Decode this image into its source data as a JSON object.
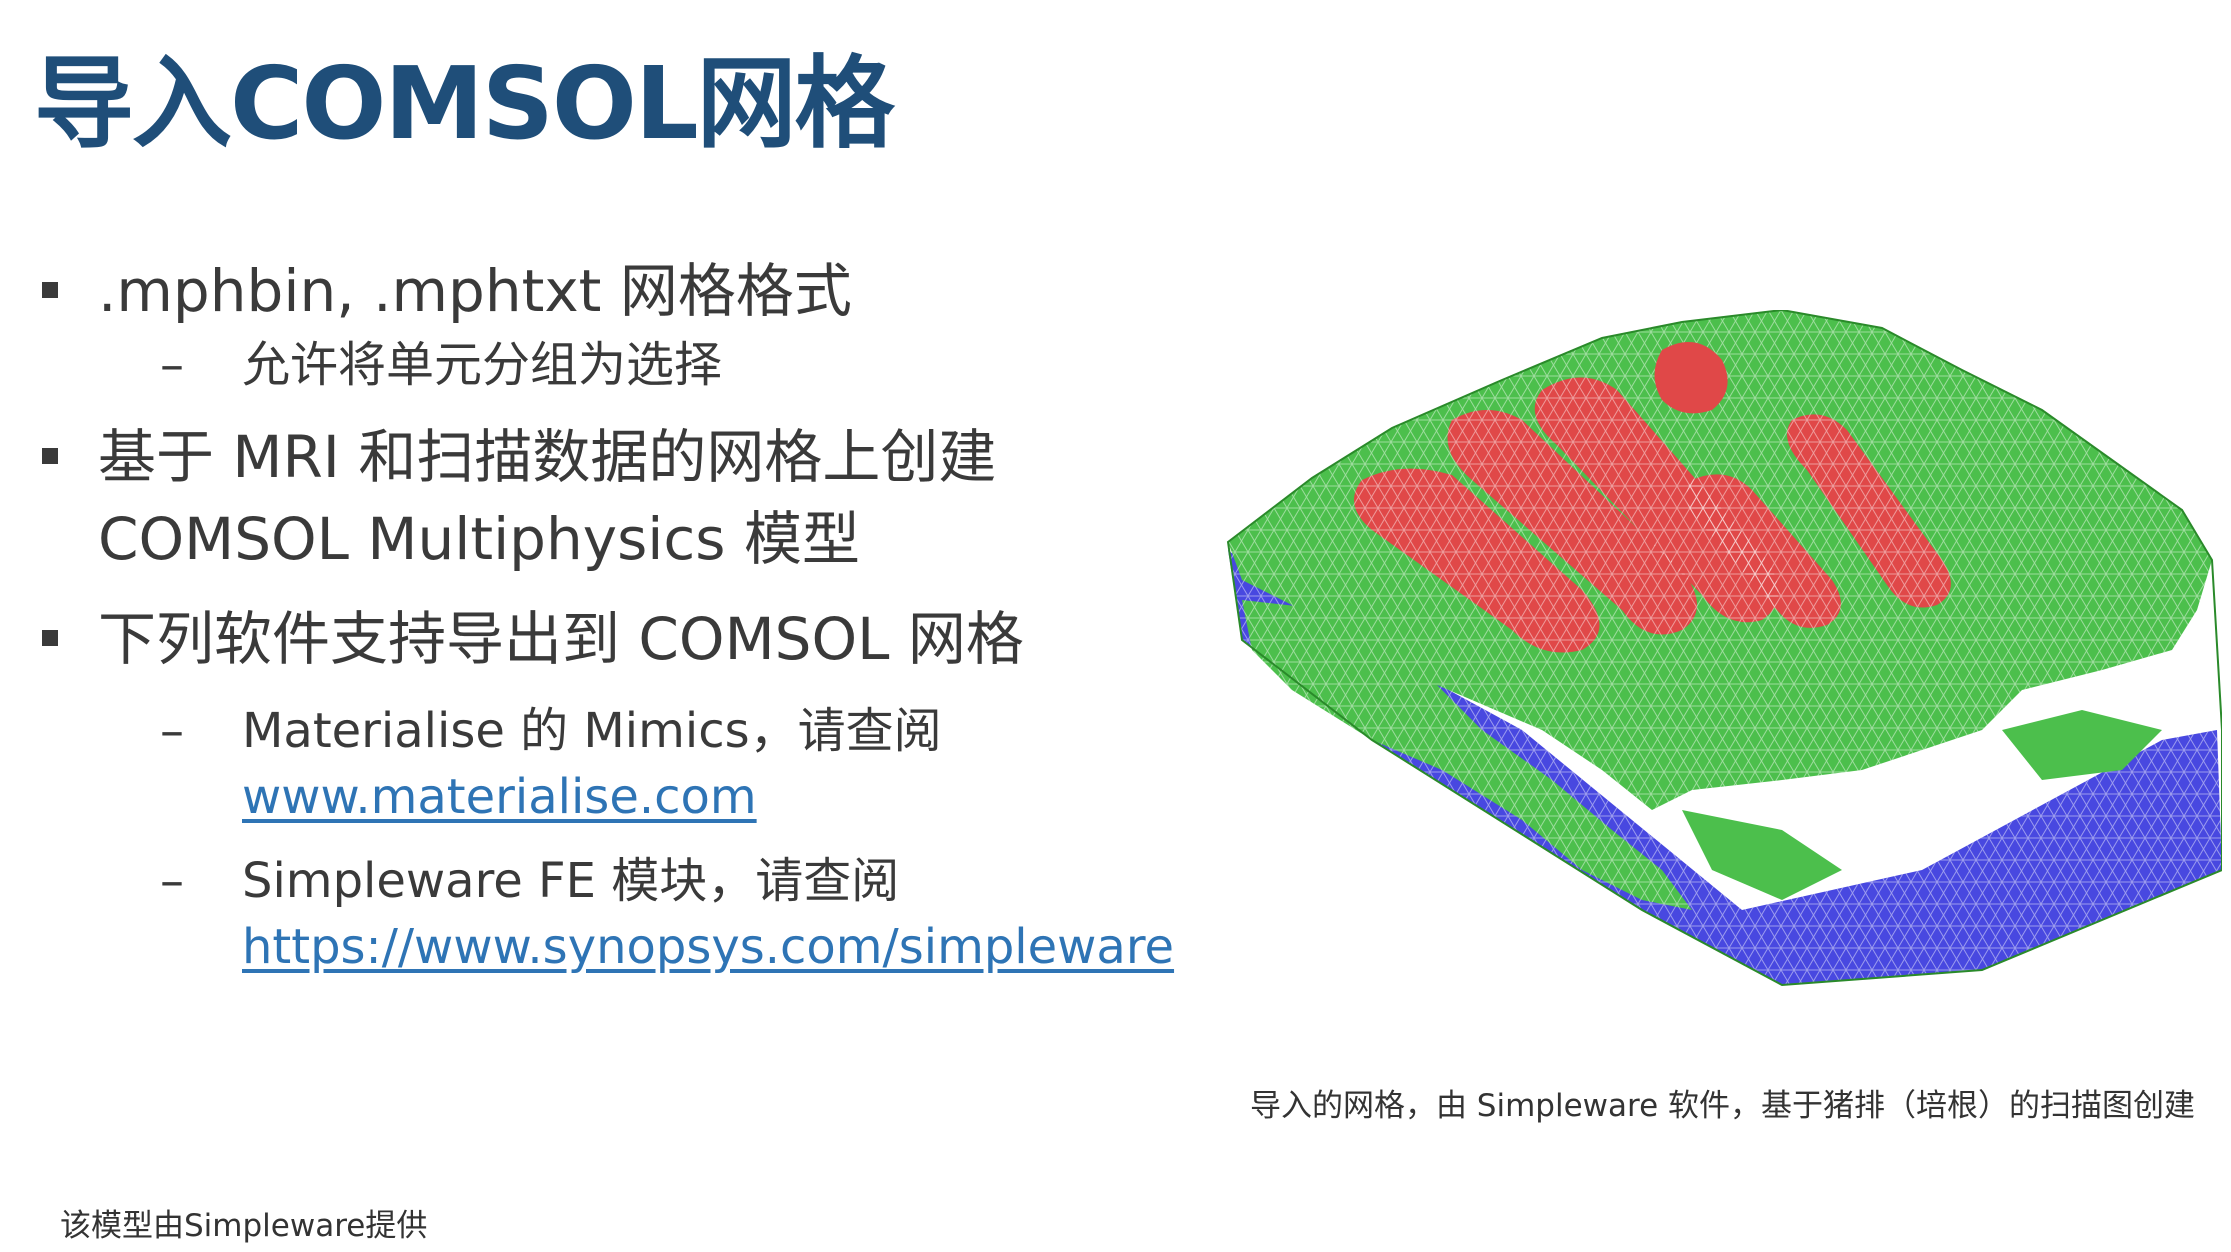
{
  "title": "导入COMSOL网格",
  "bullets": [
    {
      "text": ".mphbin, .mphtxt 网格格式",
      "sub": [
        {
          "text": "允许将单元分组为选择"
        }
      ]
    },
    {
      "text": "基于 MRI 和扫描数据的网格上创建",
      "text_line2": "COMSOL Multiphysics 模型",
      "sub": []
    },
    {
      "text": "下列软件支持导出到 COMSOL 网格",
      "sub": [
        {
          "text": "Materialise 的 Mimics，请查阅",
          "link": "www.materialise.com"
        },
        {
          "text": "Simpleware FE 模块，请查阅",
          "link": "https://www.synopsys.com/simpleware"
        }
      ]
    }
  ],
  "dash_symbol": "–",
  "figure_caption": "导入的网格，由 Simpleware 软件，基于猪排（培根）的扫描图创建",
  "footnote": "该模型由Simpleware提供",
  "colors": {
    "title": "#1f4e79",
    "link": "#2e74b5",
    "mesh_green": "#4cbf4c",
    "mesh_red": "#e04848",
    "mesh_blue": "#4848e0"
  }
}
